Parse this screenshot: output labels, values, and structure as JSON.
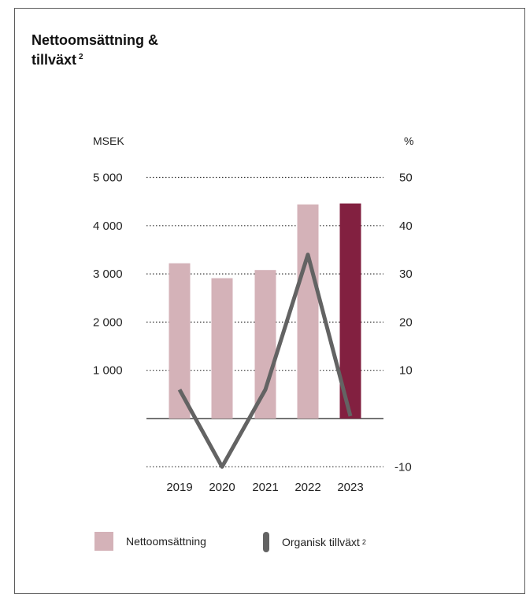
{
  "title": {
    "line1": "Nettoomsättning &",
    "line2": "tillväxt",
    "footnote": "2"
  },
  "colors": {
    "bar": "#d4b2b8",
    "bar_highlight": "#822040",
    "line": "#636363",
    "grid": "#333333",
    "border": "#5c5c5c"
  },
  "chart_data": {
    "type": "bar",
    "categories": [
      "2019",
      "2020",
      "2021",
      "2022",
      "2023"
    ],
    "series": [
      {
        "name": "Nettoomsättning",
        "axis": "left",
        "type": "bar",
        "values": [
          3220,
          2910,
          3080,
          4440,
          4460
        ],
        "highlight_index": 4
      },
      {
        "name": "Organisk tillväxt",
        "axis": "right",
        "type": "line",
        "values": [
          6,
          -10,
          6,
          34,
          0.5
        ]
      }
    ],
    "left_axis": {
      "label": "MSEK",
      "ticks": [
        "5 000",
        "4 000",
        "3 000",
        "2 000",
        "1 000"
      ],
      "tick_values": [
        5000,
        4000,
        3000,
        2000,
        1000
      ],
      "ylim": [
        -1000,
        5000
      ]
    },
    "right_axis": {
      "label": "%",
      "ticks": [
        "50",
        "40",
        "30",
        "20",
        "10",
        "-10"
      ],
      "tick_values": [
        50,
        40,
        30,
        20,
        10,
        -10
      ],
      "ylim": [
        -10,
        50
      ]
    },
    "grid": "dotted",
    "legend": [
      {
        "label": "Nettoomsättning",
        "footnote": ""
      },
      {
        "label": "Organisk tillväxt",
        "footnote": "2"
      }
    ],
    "legend_position": "bottom"
  }
}
